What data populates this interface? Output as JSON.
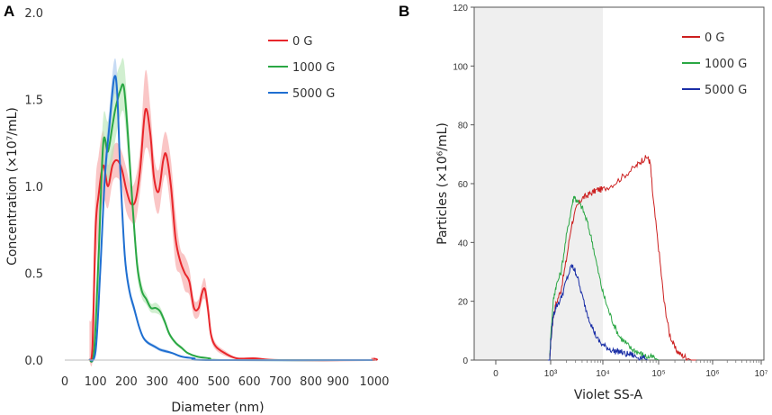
{
  "panels": {
    "a": "A",
    "b": "B"
  },
  "chart_data": [
    {
      "type": "line",
      "panel": "A",
      "xlabel": "Diameter (nm)",
      "ylabel": "Concentration (×10⁷/mL)",
      "xlim": [
        0,
        1000
      ],
      "ylim": [
        0,
        2.0
      ],
      "x_ticks": [
        "0",
        "100",
        "200",
        "300",
        "400",
        "500",
        "600",
        "700",
        "800",
        "900",
        "1000"
      ],
      "y_ticks": [
        "0.0",
        "0.5",
        "1.0",
        "1.5",
        "2.0"
      ],
      "legend": [
        {
          "label": "0 G",
          "color": "#e8262b"
        },
        {
          "label": "1000 G",
          "color": "#2aa744"
        },
        {
          "label": "5000 G",
          "color": "#1f6fd1"
        }
      ],
      "series": [
        {
          "name": "0 G",
          "color": "#e8262b",
          "band_color": "#f7a8a8",
          "points": [
            [
              80,
              0
            ],
            [
              90,
              0.08
            ],
            [
              100,
              0.75
            ],
            [
              110,
              0.95
            ],
            [
              125,
              1.12
            ],
            [
              140,
              1.0
            ],
            [
              155,
              1.12
            ],
            [
              170,
              1.15
            ],
            [
              185,
              1.1
            ],
            [
              200,
              0.98
            ],
            [
              215,
              0.9
            ],
            [
              230,
              0.92
            ],
            [
              245,
              1.1
            ],
            [
              262,
              1.44
            ],
            [
              278,
              1.3
            ],
            [
              290,
              1.05
            ],
            [
              305,
              0.97
            ],
            [
              320,
              1.15
            ],
            [
              330,
              1.18
            ],
            [
              345,
              1.0
            ],
            [
              360,
              0.7
            ],
            [
              375,
              0.57
            ],
            [
              390,
              0.5
            ],
            [
              405,
              0.45
            ],
            [
              420,
              0.3
            ],
            [
              435,
              0.3
            ],
            [
              445,
              0.38
            ],
            [
              455,
              0.41
            ],
            [
              465,
              0.3
            ],
            [
              475,
              0.15
            ],
            [
              490,
              0.08
            ],
            [
              520,
              0.04
            ],
            [
              560,
              0.01
            ],
            [
              620,
              0.01
            ],
            [
              700,
              0
            ],
            [
              990,
              0
            ],
            [
              1000,
              0.01
            ]
          ],
          "band": [
            0.45,
            0.45,
            0.5,
            0.45,
            0.4,
            0.25,
            0.2,
            0.2,
            0.2,
            0.25,
            0.2,
            0.25,
            0.25,
            0.45,
            0.3,
            0.25,
            0.25,
            0.25,
            0.25,
            0.3,
            0.3,
            0.15,
            0.2,
            0.15,
            0.1,
            0.1,
            0.1,
            0.12,
            0.1,
            0.06,
            0.04,
            0.03,
            0.01,
            0.01,
            0,
            0,
            0
          ]
        },
        {
          "name": "1000 G",
          "color": "#2aa744",
          "band_color": "#b9e6b7",
          "points": [
            [
              80,
              0
            ],
            [
              95,
              0.05
            ],
            [
              110,
              0.6
            ],
            [
              125,
              1.25
            ],
            [
              140,
              1.2
            ],
            [
              155,
              1.35
            ],
            [
              165,
              1.45
            ],
            [
              180,
              1.55
            ],
            [
              192,
              1.57
            ],
            [
              205,
              1.3
            ],
            [
              220,
              0.9
            ],
            [
              235,
              0.55
            ],
            [
              250,
              0.4
            ],
            [
              265,
              0.35
            ],
            [
              280,
              0.3
            ],
            [
              295,
              0.3
            ],
            [
              310,
              0.28
            ],
            [
              325,
              0.22
            ],
            [
              340,
              0.15
            ],
            [
              360,
              0.1
            ],
            [
              380,
              0.07
            ],
            [
              400,
              0.04
            ],
            [
              430,
              0.02
            ],
            [
              470,
              0.01
            ],
            [
              520,
              0
            ],
            [
              1000,
              0
            ]
          ],
          "band": [
            0,
            0.05,
            0.4,
            0.3,
            0.35,
            0.4,
            0.35,
            0.3,
            0.3,
            0.25,
            0.15,
            0.12,
            0.08,
            0.06,
            0.05,
            0.06,
            0.05,
            0.04,
            0.03,
            0.02,
            0.02,
            0.01,
            0.01,
            0,
            0,
            0
          ]
        },
        {
          "name": "5000 G",
          "color": "#1f6fd1",
          "band_color": "#a9c8ee",
          "points": [
            [
              80,
              0
            ],
            [
              100,
              0.05
            ],
            [
              115,
              0.5
            ],
            [
              130,
              1.05
            ],
            [
              145,
              1.35
            ],
            [
              160,
              1.62
            ],
            [
              170,
              1.55
            ],
            [
              180,
              1.1
            ],
            [
              195,
              0.6
            ],
            [
              210,
              0.4
            ],
            [
              225,
              0.3
            ],
            [
              240,
              0.2
            ],
            [
              255,
              0.13
            ],
            [
              270,
              0.1
            ],
            [
              290,
              0.08
            ],
            [
              310,
              0.06
            ],
            [
              330,
              0.05
            ],
            [
              350,
              0.04
            ],
            [
              380,
              0.02
            ],
            [
              420,
              0.01
            ],
            [
              470,
              0
            ],
            [
              1000,
              0
            ]
          ],
          "band": [
            0,
            0.03,
            0.15,
            0.2,
            0.2,
            0.2,
            0.2,
            0.15,
            0.1,
            0.06,
            0.05,
            0.03,
            0.02,
            0.02,
            0.02,
            0.02,
            0.02,
            0.01,
            0.01,
            0,
            0,
            0
          ]
        }
      ]
    },
    {
      "type": "line",
      "panel": "B",
      "xlabel": "Violet SS-A",
      "ylabel": "Particles (×10⁶/mL)",
      "xscale": "log (biexponential)",
      "ylim": [
        0,
        120
      ],
      "x_ticks": [
        "0",
        "10³",
        "10⁴",
        "10⁵",
        "10⁶",
        "10⁷"
      ],
      "y_ticks": [
        "0",
        "20",
        "40",
        "60",
        "80",
        "100",
        "120"
      ],
      "gate_region": "shaded from left edge to 10⁴",
      "legend": [
        {
          "label": "0 G",
          "color": "#cc1f1f"
        },
        {
          "label": "1000 G",
          "color": "#2aa744"
        },
        {
          "label": "5000 G",
          "color": "#1a2ea6"
        }
      ],
      "series": [
        {
          "name": "0 G",
          "color": "#cc1f1f",
          "points": [
            [
              2.85,
              0
            ],
            [
              2.95,
              0
            ],
            [
              3.0,
              6
            ],
            [
              3.05,
              15
            ],
            [
              3.1,
              19
            ],
            [
              3.2,
              24
            ],
            [
              3.3,
              34
            ],
            [
              3.4,
              46
            ],
            [
              3.5,
              52
            ],
            [
              3.6,
              55
            ],
            [
              3.7,
              56
            ],
            [
              3.8,
              57
            ],
            [
              3.9,
              58
            ],
            [
              4.0,
              58
            ],
            [
              4.2,
              60
            ],
            [
              4.4,
              63
            ],
            [
              4.6,
              66
            ],
            [
              4.7,
              68
            ],
            [
              4.8,
              69
            ],
            [
              4.85,
              67
            ],
            [
              4.9,
              55
            ],
            [
              5.0,
              38
            ],
            [
              5.1,
              20
            ],
            [
              5.2,
              9
            ],
            [
              5.3,
              4
            ],
            [
              5.4,
              2
            ],
            [
              5.5,
              1
            ],
            [
              5.6,
              0
            ],
            [
              5.7,
              0
            ]
          ]
        },
        {
          "name": "1000 G",
          "color": "#2aa744",
          "points": [
            [
              2.85,
              0
            ],
            [
              2.95,
              0
            ],
            [
              3.0,
              8
            ],
            [
              3.05,
              20
            ],
            [
              3.1,
              25
            ],
            [
              3.2,
              30
            ],
            [
              3.3,
              42
            ],
            [
              3.4,
              52
            ],
            [
              3.45,
              56
            ],
            [
              3.5,
              54
            ],
            [
              3.6,
              52
            ],
            [
              3.7,
              47
            ],
            [
              3.8,
              40
            ],
            [
              3.9,
              31
            ],
            [
              4.0,
              23
            ],
            [
              4.1,
              17
            ],
            [
              4.2,
              12
            ],
            [
              4.3,
              8
            ],
            [
              4.4,
              6
            ],
            [
              4.5,
              4
            ],
            [
              4.6,
              3
            ],
            [
              4.7,
              2
            ],
            [
              4.8,
              1
            ],
            [
              4.9,
              1
            ],
            [
              5.0,
              0
            ]
          ]
        },
        {
          "name": "5000 G",
          "color": "#1a2ea6",
          "points": [
            [
              2.85,
              0
            ],
            [
              2.95,
              0
            ],
            [
              3.0,
              6
            ],
            [
              3.05,
              15
            ],
            [
              3.1,
              18
            ],
            [
              3.2,
              21
            ],
            [
              3.3,
              27
            ],
            [
              3.4,
              32
            ],
            [
              3.45,
              31
            ],
            [
              3.5,
              29
            ],
            [
              3.6,
              22
            ],
            [
              3.7,
              16
            ],
            [
              3.8,
              11
            ],
            [
              3.9,
              7
            ],
            [
              4.0,
              5
            ],
            [
              4.1,
              4
            ],
            [
              4.2,
              3
            ],
            [
              4.3,
              3
            ],
            [
              4.4,
              2
            ],
            [
              4.5,
              2
            ],
            [
              4.6,
              1
            ],
            [
              4.7,
              1
            ],
            [
              4.8,
              0
            ]
          ]
        }
      ]
    }
  ]
}
